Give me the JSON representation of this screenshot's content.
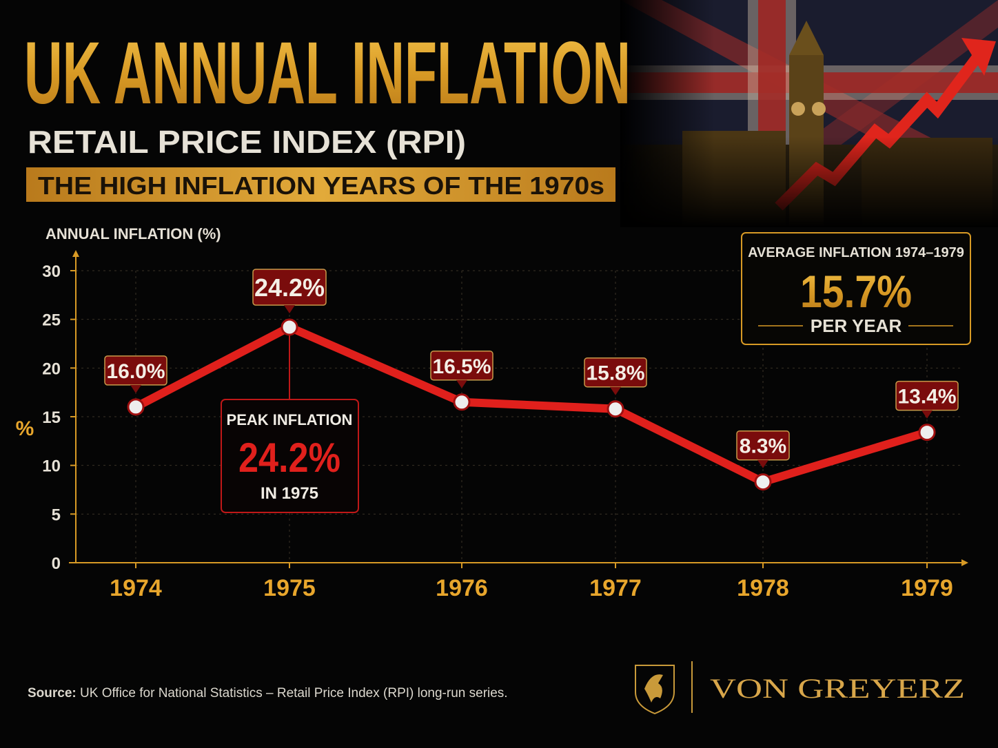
{
  "header": {
    "title": "UK ANNUAL INFLATION",
    "subtitle": "RETAIL PRICE INDEX (RPI)",
    "banner": "THE HIGH INFLATION YEARS OF THE 1970s"
  },
  "chart_data": {
    "type": "line",
    "y_title": "ANNUAL INFLATION (%)",
    "y_unit": "%",
    "categories": [
      "1974",
      "1975",
      "1976",
      "1977",
      "1978",
      "1979"
    ],
    "series": [
      {
        "color": "#e0201c",
        "values": [
          16.0,
          24.2,
          16.5,
          15.8,
          8.3,
          13.4
        ],
        "value_labels": [
          "16.0%",
          "24.2%",
          "16.5%",
          "15.8%",
          "8.3%",
          "13.4%"
        ]
      }
    ],
    "ylim": [
      0,
      30
    ],
    "yticks": [
      0,
      5,
      10,
      15,
      20,
      25,
      30
    ],
    "grid": true,
    "annotations": {
      "peak": {
        "heading": "PEAK INFLATION",
        "value": "24.2%",
        "note": "IN 1975"
      },
      "average": {
        "heading": "AVERAGE INFLATION 1974–1979",
        "value": "15.7%",
        "note": "PER YEAR"
      }
    }
  },
  "footer": {
    "source_label": "Source:",
    "source_text": "UK Office for National Statistics – Retail Price Index (RPI) long-run series.",
    "brand": "VON GREYERZ"
  }
}
